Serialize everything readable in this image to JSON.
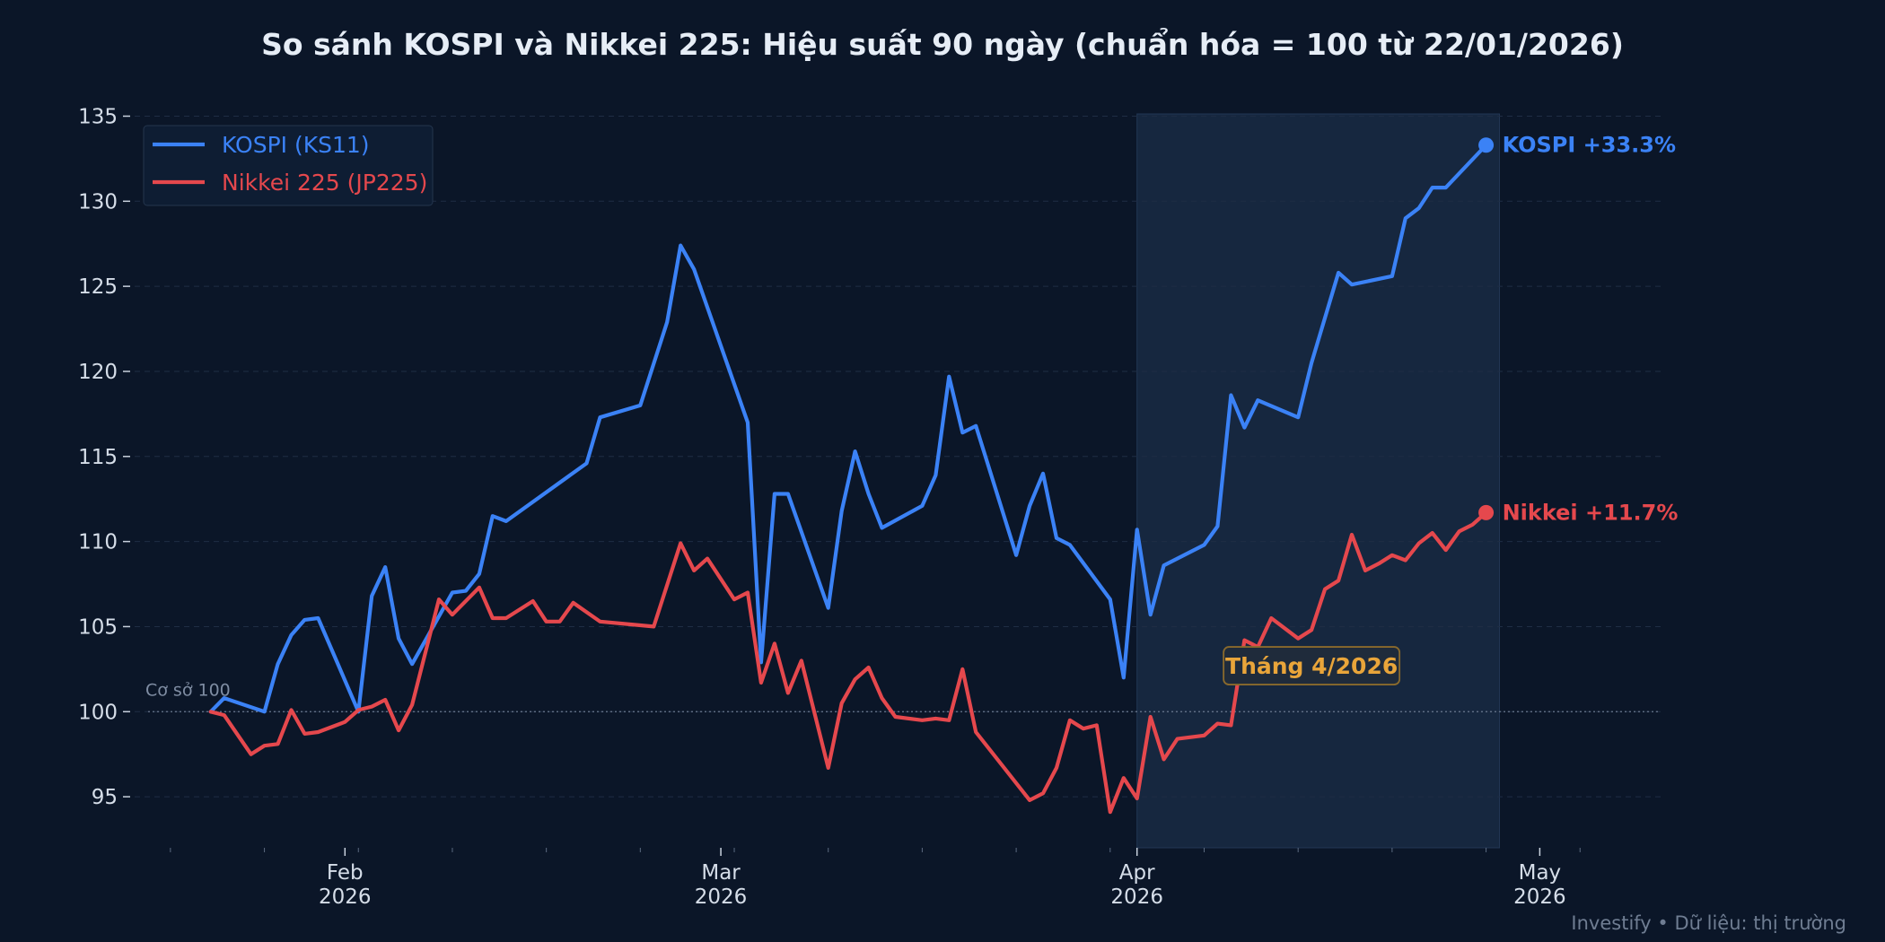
{
  "chart_data": {
    "type": "line",
    "title": "So sánh KOSPI và Nikkei 225: Hiệu suất 90 ngày (chuẩn hóa = 100 từ 22/01/2026)",
    "xlabel": "",
    "ylabel": "",
    "ylim": [
      92,
      135.5
    ],
    "xlim": [
      "2026-01-16",
      "2026-05-10"
    ],
    "grid": true,
    "legend_position": "top-left",
    "y_ticks": [
      "95",
      "100",
      "105",
      "110",
      "115",
      "120",
      "125",
      "130",
      "135"
    ],
    "x_ticks": [
      {
        "date": "2026-02-01",
        "month": "Feb",
        "year": "2026"
      },
      {
        "date": "2026-03-01",
        "month": "Mar",
        "year": "2026"
      },
      {
        "date": "2026-04-01",
        "month": "Apr",
        "year": "2026"
      },
      {
        "date": "2026-05-01",
        "month": "May",
        "year": "2026"
      }
    ],
    "baseline": {
      "value": 100,
      "label": "Cơ sở 100"
    },
    "highlight": {
      "start": "2026-04-01",
      "end": "2026-04-28",
      "label": "Tháng 4/2026",
      "label_date": "2026-04-14",
      "label_value": 102.7
    },
    "series": [
      {
        "name": "KOSPI (KS11)",
        "color": "#3b82f6",
        "end_label": "KOSPI +33.3%",
        "points": [
          [
            "2026-01-22",
            100.0
          ],
          [
            "2026-01-23",
            100.8
          ],
          [
            "2026-01-26",
            100.0
          ],
          [
            "2026-01-27",
            102.8
          ],
          [
            "2026-01-28",
            104.5
          ],
          [
            "2026-01-29",
            105.4
          ],
          [
            "2026-01-30",
            105.5
          ],
          [
            "2026-02-02",
            100.0
          ],
          [
            "2026-02-03",
            106.8
          ],
          [
            "2026-02-04",
            108.5
          ],
          [
            "2026-02-05",
            104.3
          ],
          [
            "2026-02-06",
            102.8
          ],
          [
            "2026-02-09",
            107.0
          ],
          [
            "2026-02-10",
            107.1
          ],
          [
            "2026-02-11",
            108.1
          ],
          [
            "2026-02-12",
            111.5
          ],
          [
            "2026-02-13",
            111.2
          ],
          [
            "2026-02-19",
            114.6
          ],
          [
            "2026-02-20",
            117.3
          ],
          [
            "2026-02-23",
            118.0
          ],
          [
            "2026-02-25",
            122.9
          ],
          [
            "2026-02-26",
            127.4
          ],
          [
            "2026-02-27",
            126.0
          ],
          [
            "2026-03-03",
            117.0
          ],
          [
            "2026-03-04",
            102.9
          ],
          [
            "2026-03-05",
            112.8
          ],
          [
            "2026-03-06",
            112.8
          ],
          [
            "2026-03-09",
            106.1
          ],
          [
            "2026-03-10",
            111.8
          ],
          [
            "2026-03-11",
            115.3
          ],
          [
            "2026-03-12",
            112.8
          ],
          [
            "2026-03-13",
            110.8
          ],
          [
            "2026-03-16",
            112.1
          ],
          [
            "2026-03-17",
            113.9
          ],
          [
            "2026-03-18",
            119.7
          ],
          [
            "2026-03-19",
            116.4
          ],
          [
            "2026-03-20",
            116.8
          ],
          [
            "2026-03-23",
            109.2
          ],
          [
            "2026-03-24",
            112.1
          ],
          [
            "2026-03-25",
            114.0
          ],
          [
            "2026-03-26",
            110.2
          ],
          [
            "2026-03-27",
            109.8
          ],
          [
            "2026-03-30",
            106.6
          ],
          [
            "2026-03-31",
            102.0
          ],
          [
            "2026-04-01",
            110.7
          ],
          [
            "2026-04-02",
            105.7
          ],
          [
            "2026-04-03",
            108.6
          ],
          [
            "2026-04-06",
            109.8
          ],
          [
            "2026-04-07",
            110.9
          ],
          [
            "2026-04-08",
            118.6
          ],
          [
            "2026-04-09",
            116.7
          ],
          [
            "2026-04-10",
            118.3
          ],
          [
            "2026-04-13",
            117.3
          ],
          [
            "2026-04-14",
            120.5
          ],
          [
            "2026-04-16",
            125.8
          ],
          [
            "2026-04-17",
            125.1
          ],
          [
            "2026-04-20",
            125.6
          ],
          [
            "2026-04-21",
            129.0
          ],
          [
            "2026-04-22",
            129.6
          ],
          [
            "2026-04-23",
            130.8
          ],
          [
            "2026-04-24",
            130.8
          ],
          [
            "2026-04-27",
            133.3
          ]
        ]
      },
      {
        "name": "Nikkei 225 (JP225)",
        "color": "#e5484d",
        "end_label": "Nikkei +11.7%",
        "points": [
          [
            "2026-01-22",
            100.0
          ],
          [
            "2026-01-23",
            99.8
          ],
          [
            "2026-01-25",
            97.5
          ],
          [
            "2026-01-26",
            98.0
          ],
          [
            "2026-01-27",
            98.1
          ],
          [
            "2026-01-28",
            100.1
          ],
          [
            "2026-01-29",
            98.7
          ],
          [
            "2026-01-30",
            98.8
          ],
          [
            "2026-02-01",
            99.4
          ],
          [
            "2026-02-02",
            100.1
          ],
          [
            "2026-02-03",
            100.3
          ],
          [
            "2026-02-04",
            100.7
          ],
          [
            "2026-02-05",
            98.9
          ],
          [
            "2026-02-06",
            100.4
          ],
          [
            "2026-02-08",
            106.6
          ],
          [
            "2026-02-09",
            105.7
          ],
          [
            "2026-02-11",
            107.3
          ],
          [
            "2026-02-12",
            105.5
          ],
          [
            "2026-02-13",
            105.5
          ],
          [
            "2026-02-15",
            106.5
          ],
          [
            "2026-02-16",
            105.3
          ],
          [
            "2026-02-17",
            105.3
          ],
          [
            "2026-02-18",
            106.4
          ],
          [
            "2026-02-20",
            105.3
          ],
          [
            "2026-02-24",
            105.0
          ],
          [
            "2026-02-26",
            109.9
          ],
          [
            "2026-02-27",
            108.3
          ],
          [
            "2026-02-28",
            109.0
          ],
          [
            "2026-03-02",
            106.6
          ],
          [
            "2026-03-03",
            107.0
          ],
          [
            "2026-03-04",
            101.7
          ],
          [
            "2026-03-05",
            104.0
          ],
          [
            "2026-03-06",
            101.1
          ],
          [
            "2026-03-07",
            103.0
          ],
          [
            "2026-03-09",
            96.7
          ],
          [
            "2026-03-10",
            100.5
          ],
          [
            "2026-03-11",
            101.9
          ],
          [
            "2026-03-12",
            102.6
          ],
          [
            "2026-03-13",
            100.8
          ],
          [
            "2026-03-14",
            99.7
          ],
          [
            "2026-03-16",
            99.5
          ],
          [
            "2026-03-17",
            99.6
          ],
          [
            "2026-03-18",
            99.5
          ],
          [
            "2026-03-19",
            102.5
          ],
          [
            "2026-03-20",
            98.8
          ],
          [
            "2026-03-24",
            94.8
          ],
          [
            "2026-03-25",
            95.2
          ],
          [
            "2026-03-26",
            96.7
          ],
          [
            "2026-03-27",
            99.5
          ],
          [
            "2026-03-28",
            99.0
          ],
          [
            "2026-03-29",
            99.2
          ],
          [
            "2026-03-30",
            94.1
          ],
          [
            "2026-03-31",
            96.1
          ],
          [
            "2026-04-01",
            94.9
          ],
          [
            "2026-04-02",
            99.7
          ],
          [
            "2026-04-03",
            97.2
          ],
          [
            "2026-04-04",
            98.4
          ],
          [
            "2026-04-05",
            98.5
          ],
          [
            "2026-04-06",
            98.6
          ],
          [
            "2026-04-07",
            99.3
          ],
          [
            "2026-04-08",
            99.2
          ],
          [
            "2026-04-09",
            104.2
          ],
          [
            "2026-04-10",
            103.8
          ],
          [
            "2026-04-11",
            105.5
          ],
          [
            "2026-04-12",
            104.9
          ],
          [
            "2026-04-13",
            104.3
          ],
          [
            "2026-04-14",
            104.8
          ],
          [
            "2026-04-15",
            107.2
          ],
          [
            "2026-04-16",
            107.7
          ],
          [
            "2026-04-17",
            110.4
          ],
          [
            "2026-04-18",
            108.3
          ],
          [
            "2026-04-19",
            108.7
          ],
          [
            "2026-04-20",
            109.2
          ],
          [
            "2026-04-21",
            108.9
          ],
          [
            "2026-04-22",
            109.9
          ],
          [
            "2026-04-23",
            110.5
          ],
          [
            "2026-04-24",
            109.5
          ],
          [
            "2026-04-25",
            110.6
          ],
          [
            "2026-04-26",
            111.0
          ],
          [
            "2026-04-27",
            111.7
          ]
        ]
      }
    ]
  },
  "footer": "Investify • Dữ liệu: thị trường",
  "colors": {
    "background": "#0b1628",
    "highlight_fill": "#16273f",
    "grid": "#1f2d44",
    "annotation": "#e9a53a"
  }
}
